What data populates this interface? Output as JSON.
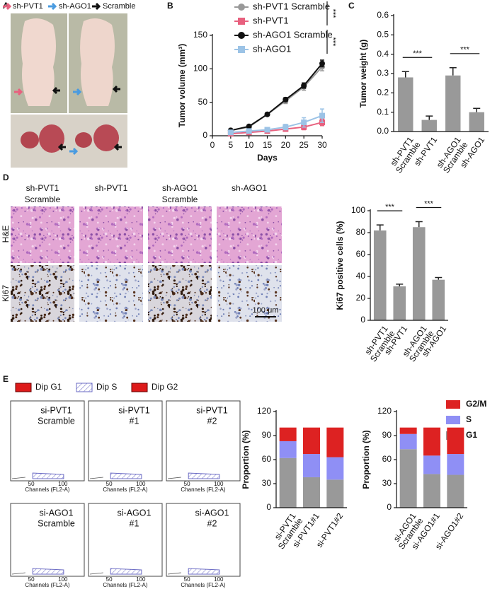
{
  "panel_labels": [
    "A",
    "B",
    "C",
    "D",
    "E"
  ],
  "panel_a": {
    "legend": [
      "sh-PVT1",
      "sh-AGO1",
      "Scramble"
    ]
  },
  "panel_d": {
    "columns": [
      [
        "sh-PVT1",
        "Scramble"
      ],
      [
        "sh-PVT1"
      ],
      [
        "sh-AGO1",
        "Scramble"
      ],
      [
        "sh-AGO1"
      ]
    ],
    "rows": [
      "H&E",
      "Ki67"
    ],
    "scale_bar": "100 μm"
  },
  "panel_e": {
    "legend": [
      "Dip G1",
      "Dip S",
      "Dip G2"
    ],
    "histograms": [
      {
        "title": [
          "si-PVT1",
          "Scramble"
        ]
      },
      {
        "title": [
          "si-PVT1",
          "#1"
        ]
      },
      {
        "title": [
          "si-PVT1",
          "#2"
        ]
      },
      {
        "title": [
          "si-AGO1",
          "Scramble"
        ]
      },
      {
        "title": [
          "si-AGO1",
          "#1"
        ]
      },
      {
        "title": [
          "si-AGO1",
          "#2"
        ]
      }
    ],
    "xticks": [
      50,
      100
    ],
    "xlabel": "Channels (FL2-A)"
  },
  "chart_data": [
    {
      "type": "line",
      "xlabel": "Days",
      "ylabel": "Tumor volume (mm³)",
      "x": [
        5,
        10,
        15,
        20,
        25,
        30
      ],
      "xlim": [
        0,
        30
      ],
      "xticks": [
        0,
        5,
        10,
        15,
        20,
        25,
        30
      ],
      "ylim": [
        0,
        150
      ],
      "yticks": [
        0,
        50,
        100,
        150
      ],
      "series": [
        {
          "name": "sh-PVT1 Scramble",
          "color": "#999999",
          "marker": "circle",
          "values": [
            8,
            13,
            32,
            52,
            73,
            103
          ],
          "errors": [
            2,
            2,
            3,
            4,
            5,
            6
          ]
        },
        {
          "name": "sh-PVT1",
          "color": "#e8607e",
          "marker": "square",
          "values": [
            3,
            5,
            7,
            10,
            13,
            20
          ],
          "errors": [
            2,
            2,
            2,
            3,
            4,
            5
          ]
        },
        {
          "name": "sh-AGO1 Scramble",
          "color": "#111111",
          "marker": "circle",
          "values": [
            8,
            14,
            32,
            54,
            75,
            108
          ],
          "errors": [
            2,
            2,
            2,
            3,
            4,
            5
          ]
        },
        {
          "name": "sh-AGO1",
          "color": "#9cc3e6",
          "marker": "square",
          "values": [
            5,
            7,
            9,
            13,
            20,
            30
          ],
          "errors": [
            2,
            3,
            3,
            4,
            7,
            10
          ]
        }
      ],
      "annotations": [
        "***",
        "***"
      ]
    },
    {
      "type": "bar",
      "ylabel": "Tumor weight (g)",
      "categories": [
        [
          "sh-PVT1",
          "Scramble"
        ],
        [
          "sh-PVT1"
        ],
        [
          "sh-AGO1",
          "Scramble"
        ],
        [
          "sh-AGO1"
        ]
      ],
      "values": [
        0.28,
        0.06,
        0.29,
        0.1
      ],
      "errors": [
        0.03,
        0.02,
        0.04,
        0.02
      ],
      "color": "#999999",
      "ylim": [
        0,
        0.6
      ],
      "yticks": [
        {
          "value": 0,
          "label": "0.0"
        },
        0.1,
        0.2,
        0.3,
        0.4,
        0.5,
        0.6
      ],
      "annotations": [
        "***",
        "***"
      ]
    },
    {
      "type": "bar",
      "ylabel": "Ki67 positive cells (%)",
      "categories": [
        [
          "sh-PVT1",
          "Scramble"
        ],
        [
          "sh-PVT1"
        ],
        [
          "sh-AGO1",
          "Scramble"
        ],
        [
          "sh-AGO1"
        ]
      ],
      "values": [
        82,
        31,
        85,
        37
      ],
      "errors": [
        5,
        2,
        5,
        2
      ],
      "color": "#999999",
      "ylim": [
        0,
        100
      ],
      "yticks": [
        0,
        20,
        40,
        60,
        80,
        100
      ],
      "annotations": [
        "***",
        "***"
      ]
    },
    {
      "type": "stacked_bar",
      "ylabel": "Proportion (%)",
      "categories": [
        [
          "si-PVT1",
          "Scramble"
        ],
        [
          "si-PVT1#1"
        ],
        [
          "si-PVT1#2"
        ]
      ],
      "ylim": [
        0,
        120
      ],
      "yticks": [
        0,
        30,
        60,
        90,
        120
      ],
      "series": [
        {
          "name": "G1",
          "color": "#999999",
          "values": [
            62,
            38,
            35
          ]
        },
        {
          "name": "S",
          "color": "#8f8ff5",
          "values": [
            21,
            29,
            28
          ]
        },
        {
          "name": "G2/M",
          "color": "#dd2222",
          "values": [
            17,
            33,
            37
          ]
        }
      ]
    },
    {
      "type": "stacked_bar",
      "ylabel": "Proportion (%)",
      "categories": [
        [
          "si-AGO1",
          "Scramble"
        ],
        [
          "si-AGO1#1"
        ],
        [
          "si-AGO1#2"
        ]
      ],
      "ylim": [
        0,
        120
      ],
      "yticks": [
        0,
        30,
        60,
        90,
        120
      ],
      "series": [
        {
          "color": "#999999",
          "values": [
            73,
            42,
            41
          ]
        },
        {
          "color": "#8f8ff5",
          "values": [
            19,
            23,
            26
          ]
        },
        {
          "color": "#dd2222",
          "values": [
            8,
            35,
            33
          ]
        }
      ]
    }
  ]
}
